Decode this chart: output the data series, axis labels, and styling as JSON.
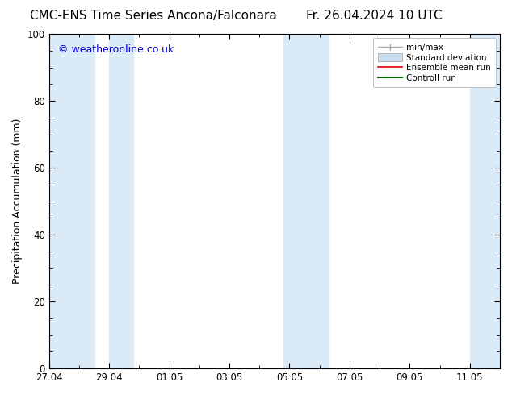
{
  "title_left": "CMC-ENS Time Series Ancona/Falconara",
  "title_right": "Fr. 26.04.2024 10 UTC",
  "ylabel": "Precipitation Accumulation (mm)",
  "watermark": "© weatheronline.co.uk",
  "ylim": [
    0,
    100
  ],
  "yticks": [
    0,
    20,
    40,
    60,
    80,
    100
  ],
  "xtick_labels": [
    "27.04",
    "29.04",
    "01.05",
    "03.05",
    "05.05",
    "07.05",
    "09.05",
    "11.05"
  ],
  "bg_color": "#ffffff",
  "plot_bg_color": "#ffffff",
  "border_color": "#000000",
  "title_fontsize": 11,
  "watermark_color": "#0000cc",
  "watermark_fontsize": 9,
  "axis_label_fontsize": 9,
  "tick_fontsize": 8.5,
  "band_color": "#daeaf7",
  "legend_frame_color": "#cccccc"
}
